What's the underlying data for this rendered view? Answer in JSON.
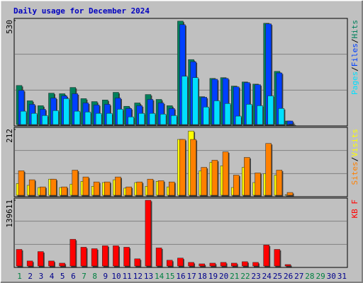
{
  "chart_data": [
    {
      "type": "bar",
      "title": "Daily usage for December 2024",
      "ylim": [
        0,
        530
      ],
      "yticks": [
        530
      ],
      "legend_separator": "/",
      "series": [
        {
          "name": "Hits",
          "color": "#00805c",
          "values": [
            199,
            121,
            96,
            160,
            157,
            189,
            132,
            117,
            125,
            164,
            93,
            110,
            153,
            128,
            96,
            527,
            331,
            142,
            235,
            239,
            196,
            217,
            206,
            516,
            271,
            18,
            0,
            0,
            0,
            0,
            0
          ]
        },
        {
          "name": "Files",
          "color": "#0040ff",
          "values": [
            174,
            103,
            78,
            135,
            146,
            157,
            110,
            100,
            103,
            135,
            82,
            96,
            128,
            110,
            82,
            509,
            320,
            139,
            231,
            235,
            192,
            214,
            203,
            513,
            263,
            18,
            0,
            0,
            0,
            0,
            0
          ]
        },
        {
          "name": "Pages",
          "color": "#00e0ff",
          "values": [
            68,
            57,
            46,
            71,
            132,
            68,
            64,
            57,
            57,
            78,
            39,
            57,
            57,
            53,
            46,
            246,
            239,
            89,
            121,
            107,
            43,
            103,
            96,
            146,
            82,
            2,
            0,
            0,
            0,
            0,
            0
          ]
        }
      ]
    },
    {
      "type": "bar",
      "ylim": [
        0,
        212
      ],
      "yticks": [
        212
      ],
      "legend_separator": "/",
      "series": [
        {
          "name": "Visits",
          "color": "#ffff00",
          "values": [
            38,
            32,
            25,
            52,
            25,
            36,
            45,
            29,
            41,
            50,
            23,
            41,
            29,
            45,
            27,
            180,
            207,
            79,
            106,
            95,
            25,
            90,
            41,
            70,
            65,
            2,
            0,
            0,
            0,
            0,
            0
          ]
        },
        {
          "name": "Sites",
          "color": "#ff8000",
          "values": [
            79,
            50,
            27,
            52,
            27,
            81,
            59,
            43,
            43,
            59,
            27,
            43,
            52,
            47,
            43,
            180,
            180,
            90,
            113,
            140,
            65,
            122,
            72,
            167,
            81,
            9,
            0,
            0,
            0,
            0,
            0
          ]
        }
      ]
    },
    {
      "type": "bar",
      "ylim": [
        0,
        139611
      ],
      "yticks": [
        139611
      ],
      "categories": [
        "1",
        "2",
        "3",
        "4",
        "5",
        "6",
        "7",
        "8",
        "9",
        "10",
        "11",
        "12",
        "13",
        "14",
        "15",
        "16",
        "17",
        "18",
        "19",
        "20",
        "21",
        "22",
        "23",
        "24",
        "25",
        "26",
        "27",
        "28",
        "29",
        "30",
        "31"
      ],
      "label_colors": [
        "#008040",
        "#00008b",
        "#00008b",
        "#00008b",
        "#00008b",
        "#00008b",
        "#008040",
        "#008040",
        "#00008b",
        "#00008b",
        "#00008b",
        "#00008b",
        "#00008b",
        "#008040",
        "#008040",
        "#00008b",
        "#00008b",
        "#00008b",
        "#00008b",
        "#00008b",
        "#008040",
        "#008040",
        "#00008b",
        "#00008b",
        "#00008b",
        "#00008b",
        "#00008b",
        "#008040",
        "#008040",
        "#00008b",
        "#00008b"
      ],
      "series": [
        {
          "name": "KB F",
          "color": "#ff0000",
          "values": [
            35300,
            10700,
            30700,
            10700,
            6100,
            56800,
            39900,
            36800,
            43000,
            43000,
            39900,
            15300,
            139611,
            38400,
            12300,
            16900,
            7700,
            4600,
            6100,
            7700,
            6100,
            9200,
            7700,
            44500,
            35300,
            3100,
            0,
            0,
            0,
            0,
            0
          ]
        }
      ]
    }
  ]
}
